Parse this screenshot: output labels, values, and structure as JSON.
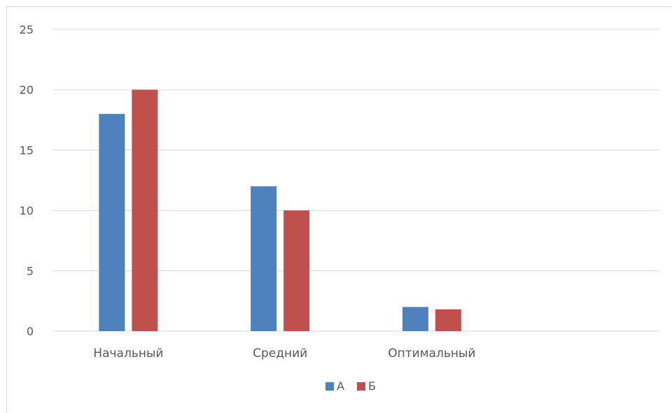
{
  "chart_data": {
    "type": "bar",
    "title": "",
    "xlabel": "",
    "ylabel": "",
    "categories": [
      "Начальный",
      "Средний",
      "Оптимальный",
      ""
    ],
    "series": [
      {
        "name": "А",
        "values": [
          18,
          12,
          2,
          null
        ],
        "color": "#4f81bd"
      },
      {
        "name": "Б",
        "values": [
          20,
          10,
          1.8,
          null
        ],
        "color": "#c0504d"
      }
    ],
    "ylim": [
      0,
      25
    ],
    "yticks": [
      "0",
      "5",
      "10",
      "15",
      "20",
      "25"
    ],
    "grid": true,
    "legend": "bottom"
  }
}
